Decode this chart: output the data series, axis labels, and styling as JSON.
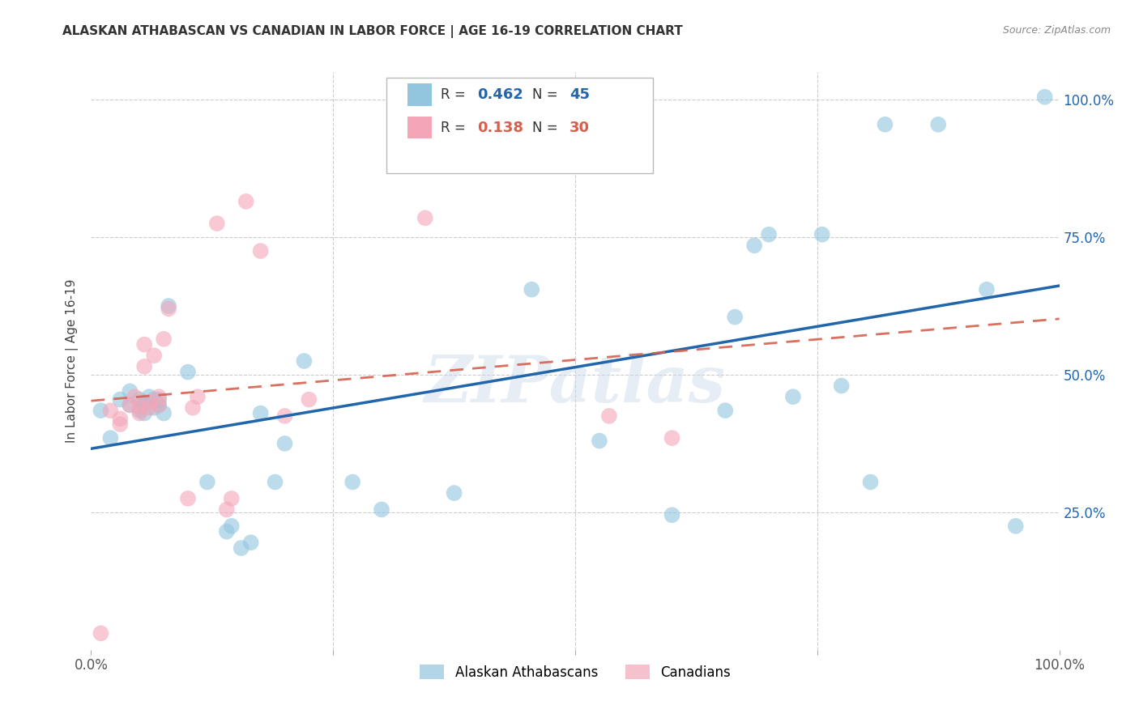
{
  "title": "ALASKAN ATHABASCAN VS CANADIAN IN LABOR FORCE | AGE 16-19 CORRELATION CHART",
  "source": "Source: ZipAtlas.com",
  "ylabel": "In Labor Force | Age 16-19",
  "xlim": [
    0.0,
    1.0
  ],
  "ylim": [
    0.0,
    1.05
  ],
  "xticks": [
    0.0,
    0.25,
    0.5,
    0.75,
    1.0
  ],
  "xticklabels": [
    "0.0%",
    "",
    "",
    "",
    "100.0%"
  ],
  "yticks": [
    0.0,
    0.25,
    0.5,
    0.75,
    1.0
  ],
  "yticklabels_right": [
    "",
    "25.0%",
    "50.0%",
    "75.0%",
    "100.0%"
  ],
  "legend1_label": "Alaskan Athabascans",
  "legend2_label": "Canadians",
  "R1": 0.462,
  "N1": 45,
  "R2": 0.138,
  "N2": 30,
  "color_blue": "#92c5de",
  "color_pink": "#f4a6b8",
  "line_blue": "#2166ac",
  "line_pink": "#d6604d",
  "tick_color_right": "#2166ac",
  "watermark": "ZIPatlas",
  "blue_x": [
    0.01,
    0.02,
    0.03,
    0.04,
    0.04,
    0.05,
    0.05,
    0.055,
    0.055,
    0.06,
    0.065,
    0.065,
    0.07,
    0.07,
    0.075,
    0.08,
    0.1,
    0.12,
    0.14,
    0.145,
    0.155,
    0.165,
    0.175,
    0.19,
    0.2,
    0.22,
    0.27,
    0.3,
    0.375,
    0.455,
    0.525,
    0.6,
    0.655,
    0.665,
    0.685,
    0.7,
    0.725,
    0.755,
    0.775,
    0.805,
    0.82,
    0.875,
    0.925,
    0.955,
    0.985
  ],
  "blue_y": [
    0.435,
    0.385,
    0.455,
    0.445,
    0.47,
    0.435,
    0.455,
    0.43,
    0.45,
    0.46,
    0.44,
    0.455,
    0.455,
    0.445,
    0.43,
    0.625,
    0.505,
    0.305,
    0.215,
    0.225,
    0.185,
    0.195,
    0.43,
    0.305,
    0.375,
    0.525,
    0.305,
    0.255,
    0.285,
    0.655,
    0.38,
    0.245,
    0.435,
    0.605,
    0.735,
    0.755,
    0.46,
    0.755,
    0.48,
    0.305,
    0.955,
    0.955,
    0.655,
    0.225,
    1.005
  ],
  "pink_x": [
    0.01,
    0.02,
    0.03,
    0.03,
    0.04,
    0.045,
    0.05,
    0.05,
    0.055,
    0.055,
    0.06,
    0.06,
    0.065,
    0.07,
    0.07,
    0.075,
    0.08,
    0.1,
    0.105,
    0.11,
    0.13,
    0.14,
    0.145,
    0.16,
    0.175,
    0.2,
    0.225,
    0.345,
    0.535,
    0.6
  ],
  "pink_y": [
    0.03,
    0.435,
    0.41,
    0.42,
    0.445,
    0.46,
    0.43,
    0.44,
    0.515,
    0.555,
    0.44,
    0.45,
    0.535,
    0.445,
    0.46,
    0.565,
    0.62,
    0.275,
    0.44,
    0.46,
    0.775,
    0.255,
    0.275,
    0.815,
    0.725,
    0.425,
    0.455,
    0.785,
    0.425,
    0.385
  ]
}
